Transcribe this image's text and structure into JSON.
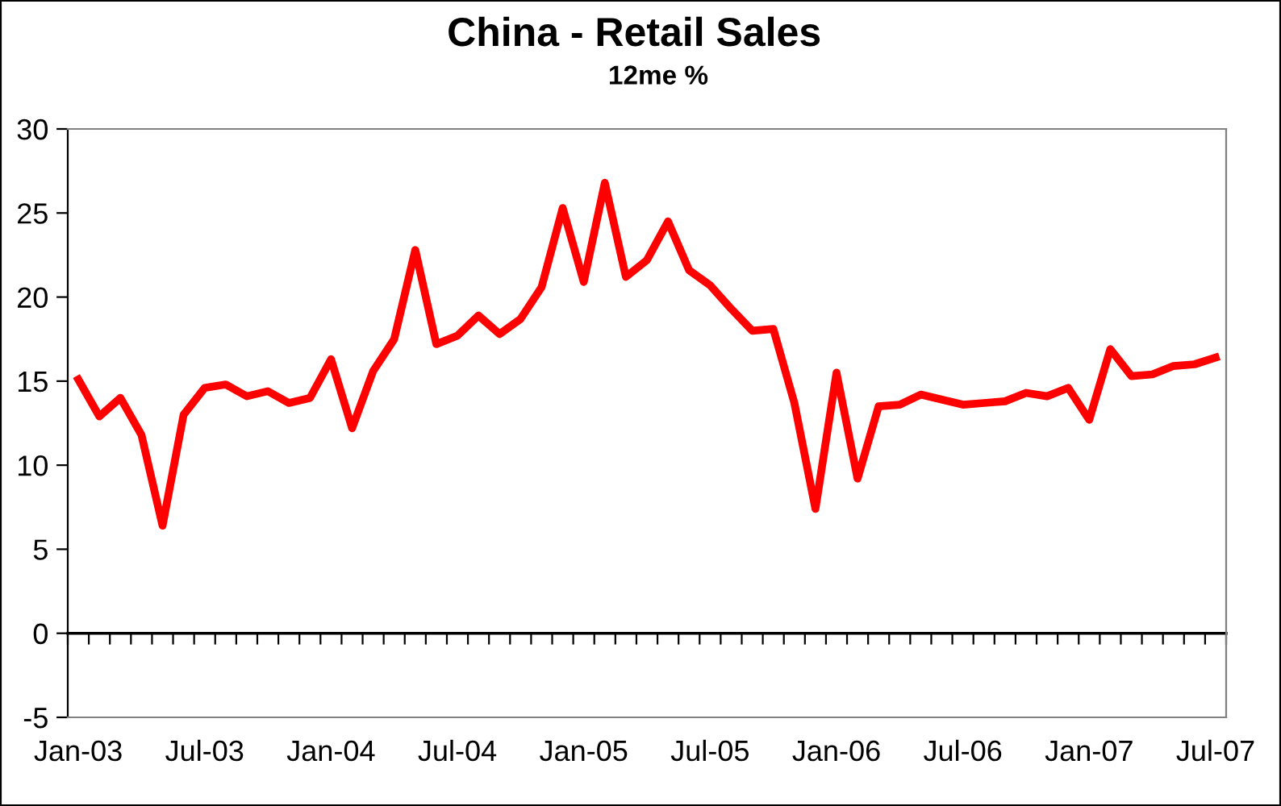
{
  "chart_data": {
    "type": "line",
    "title": "China - Retail Sales",
    "subtitle": "12me %",
    "categories": [
      "Jan-03",
      null,
      null,
      null,
      null,
      null,
      "Jul-03",
      null,
      null,
      null,
      null,
      null,
      "Jan-04",
      null,
      null,
      null,
      null,
      null,
      "Jul-04",
      null,
      null,
      null,
      null,
      null,
      "Jan-05",
      null,
      null,
      null,
      null,
      null,
      "Jul-05",
      null,
      null,
      null,
      null,
      null,
      "Jan-06",
      null,
      null,
      null,
      null,
      null,
      "Jul-06",
      null,
      null,
      null,
      null,
      null,
      "Jan-07",
      null,
      null,
      null,
      null,
      null,
      "Jul-07"
    ],
    "series": [
      {
        "color": "#ff0000",
        "values": [
          15.1,
          12.9,
          14.0,
          11.8,
          6.4,
          13.0,
          14.6,
          14.8,
          14.1,
          14.4,
          13.7,
          14.0,
          16.3,
          12.2,
          15.6,
          17.5,
          22.8,
          17.2,
          17.7,
          18.9,
          17.8,
          18.7,
          20.6,
          25.3,
          20.9,
          26.8,
          21.2,
          22.2,
          24.5,
          21.6,
          20.7,
          19.3,
          18.0,
          18.1,
          13.7,
          7.4,
          15.5,
          9.2,
          13.5,
          13.6,
          14.2,
          13.9,
          13.6,
          13.7,
          13.8,
          14.3,
          14.1,
          14.6,
          12.7,
          16.9,
          15.3,
          15.4,
          15.9,
          16.0,
          16.4
        ]
      }
    ],
    "ylim": [
      -5,
      30
    ],
    "yticks": [
      -5,
      0,
      5,
      10,
      15,
      20,
      25,
      30
    ],
    "ref_lines": [
      {
        "axis": "y",
        "value": 0,
        "color": "#000000"
      }
    ],
    "legend": false,
    "marker": "none",
    "line_style": "solid"
  }
}
